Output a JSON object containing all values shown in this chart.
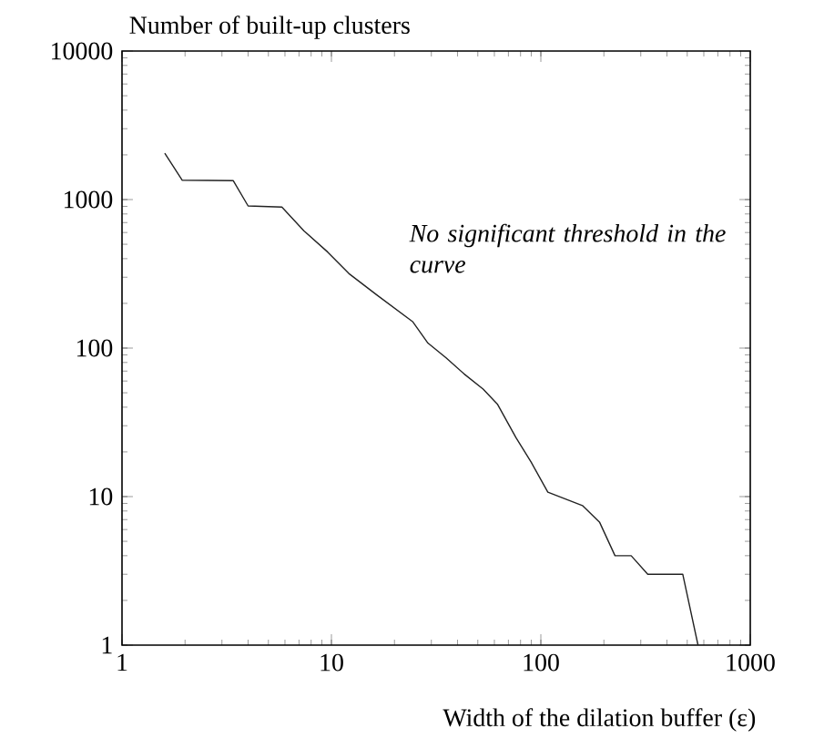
{
  "chart_data": {
    "type": "line",
    "ylabel": "Number of built-up clusters",
    "xlabel": "Width of the dilation buffer (ε)",
    "annotations": [
      "*No significant threshold in the curve*"
    ],
    "log": "xy",
    "xlim": [
      1,
      1000
    ],
    "ylim": [
      1,
      10000
    ],
    "xticks": [
      1,
      10,
      100,
      1000
    ],
    "yticks": [
      1,
      10,
      100,
      1000,
      10000
    ],
    "grid": false,
    "marker": "none",
    "line_style": "solid",
    "series": [
      {
        "color": "#222222",
        "x": [
          1.6,
          1.94,
          3.4,
          4.0,
          5.8,
          7.4,
          9.6,
          12.1,
          16.4,
          24.5,
          28.9,
          35.3,
          43,
          53,
          62,
          76,
          90,
          108,
          158,
          191,
          226,
          270,
          324,
          476,
          563
        ],
        "values": [
          2050,
          1350,
          1340,
          906,
          890,
          615,
          443,
          318,
          229,
          150,
          108,
          86,
          67,
          53,
          42,
          25,
          17,
          10.7,
          8.7,
          6.7,
          4,
          4,
          3,
          3,
          1
        ]
      }
    ]
  }
}
